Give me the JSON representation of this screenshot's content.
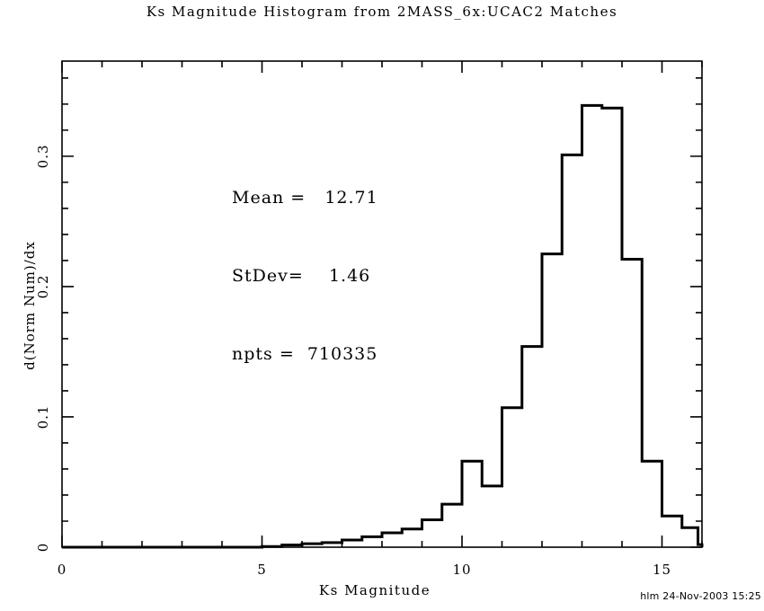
{
  "title": "Ks Magnitude Histogram from 2MASS_6x:UCAC2 Matches",
  "credit": "hlm 24-Nov-2003 15:25",
  "annotation_lines": [
    "Mean =   12.71",
    "StDev=    1.46",
    "npts =  710335"
  ],
  "chart_data": {
    "type": "histogram",
    "title": "Ks Magnitude Histogram from 2MASS_6x:UCAC2 Matches",
    "xlabel": "Ks Magnitude",
    "ylabel": "d(Norm Num)/dx",
    "xlim": [
      0,
      16
    ],
    "ylim": [
      0,
      0.373
    ],
    "x_major_ticks": [
      0,
      5,
      10,
      15
    ],
    "x_tick_labels": [
      "0",
      "5",
      "10",
      "15"
    ],
    "x_minor_step": 1,
    "y_major_ticks": [
      0,
      0.1,
      0.2,
      0.3
    ],
    "y_tick_labels": [
      "0",
      "0.1",
      "0.2",
      "0.3"
    ],
    "y_minor_step": 0.02,
    "grid": false,
    "line_color": "#000000",
    "stats": {
      "mean": 12.71,
      "stdev": 1.46,
      "npts": 710335
    },
    "bin_edges": [
      0,
      0.5,
      1,
      1.5,
      2,
      2.5,
      3,
      3.5,
      4,
      4.5,
      5,
      5.5,
      6,
      6.5,
      7,
      7.5,
      8,
      8.5,
      9,
      9.5,
      10,
      10.5,
      11,
      11.5,
      12,
      12.5,
      13,
      13.5,
      14,
      14.5,
      15,
      15.5,
      15.9,
      16
    ],
    "values": [
      0,
      0,
      0,
      0,
      0,
      0,
      0,
      0,
      0,
      0,
      0.0005,
      0.0017,
      0.0027,
      0.0035,
      0.0055,
      0.008,
      0.011,
      0.014,
      0.021,
      0.033,
      0.066,
      0.047,
      0.107,
      0.154,
      0.225,
      0.301,
      0.339,
      0.337,
      0.221,
      0.066,
      0.024,
      0.015,
      0.002
    ]
  }
}
